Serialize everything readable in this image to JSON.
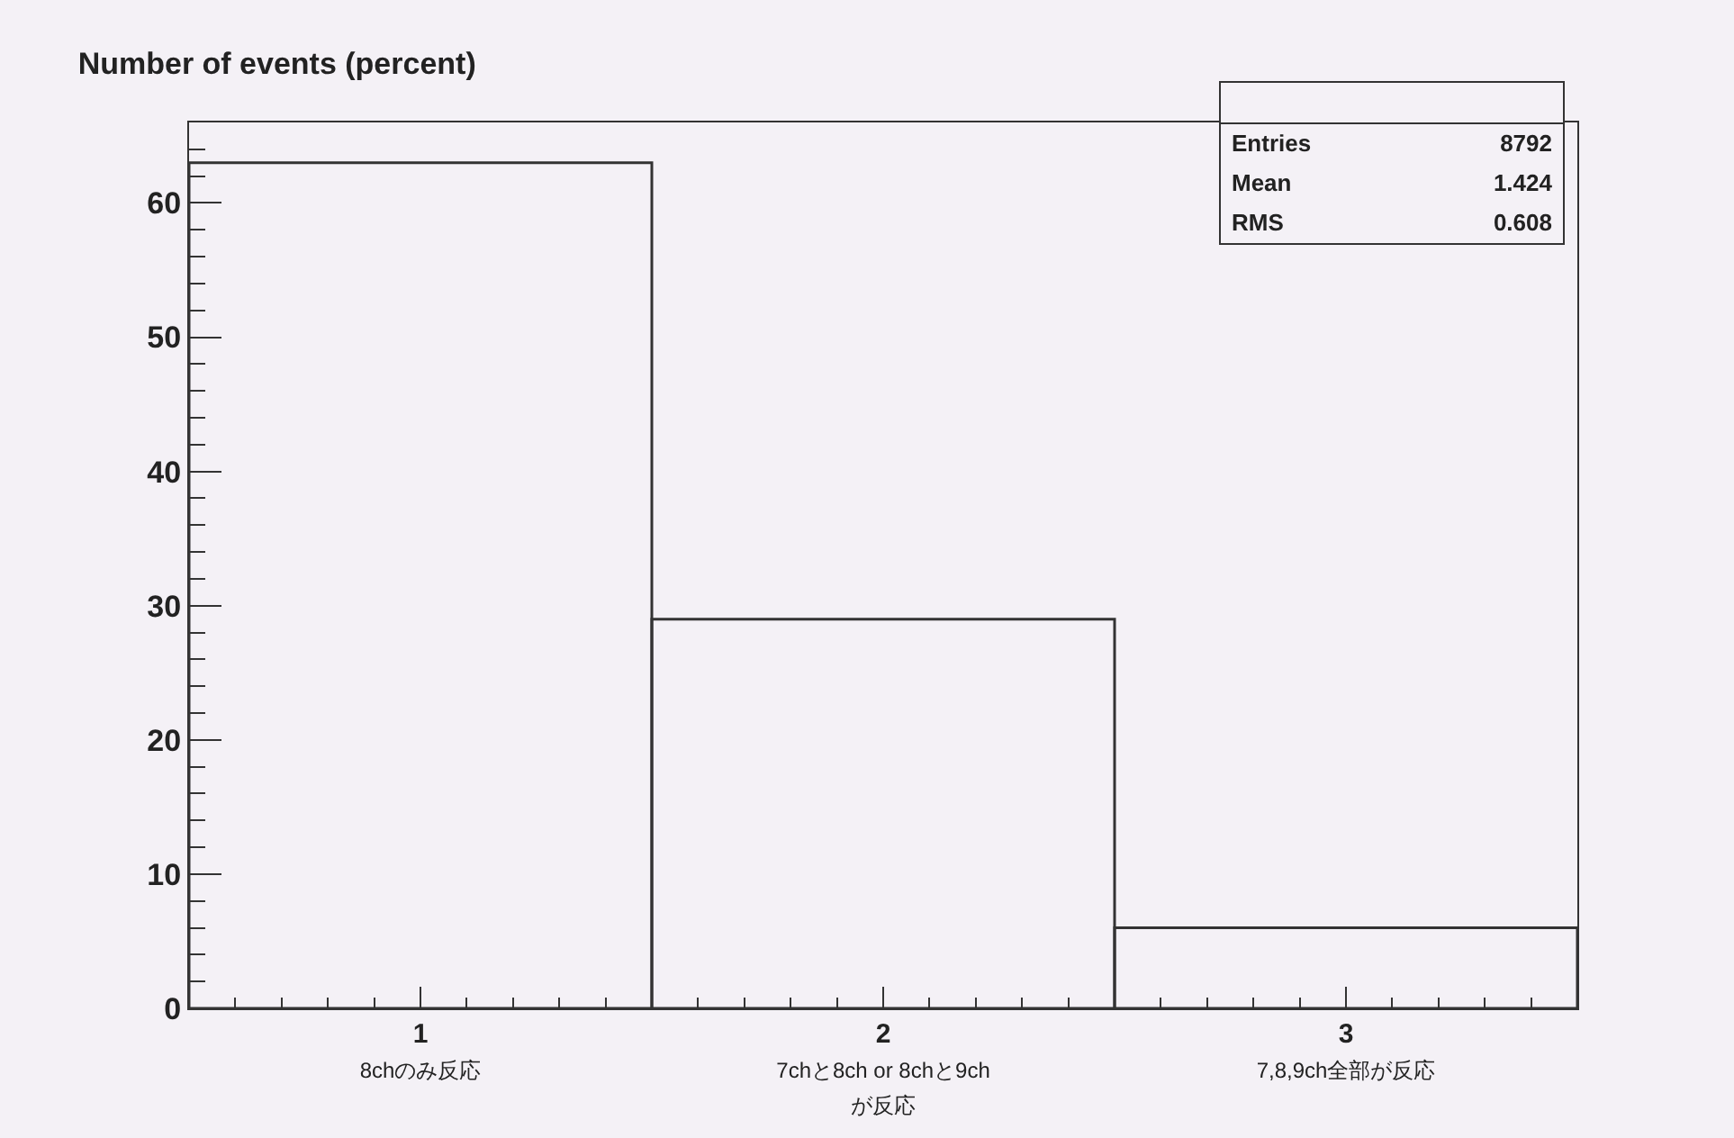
{
  "chart_data": {
    "type": "bar",
    "title": "Number of events (percent)",
    "categories": [
      "1\n8chのみ反応",
      "2\n7chと8ch or 8chと9ch\nが反応",
      "3\n7,8,9ch全部が反応"
    ],
    "values": [
      63,
      29,
      6
    ],
    "color": "#333333",
    "ylim": [
      0,
      66
    ],
    "yticks": [
      0,
      10,
      20,
      30,
      40,
      50,
      60
    ],
    "grid": false,
    "legend": false,
    "annotations": [
      "Entries 8792",
      "Mean 1.424",
      "RMS 0.608"
    ]
  }
}
